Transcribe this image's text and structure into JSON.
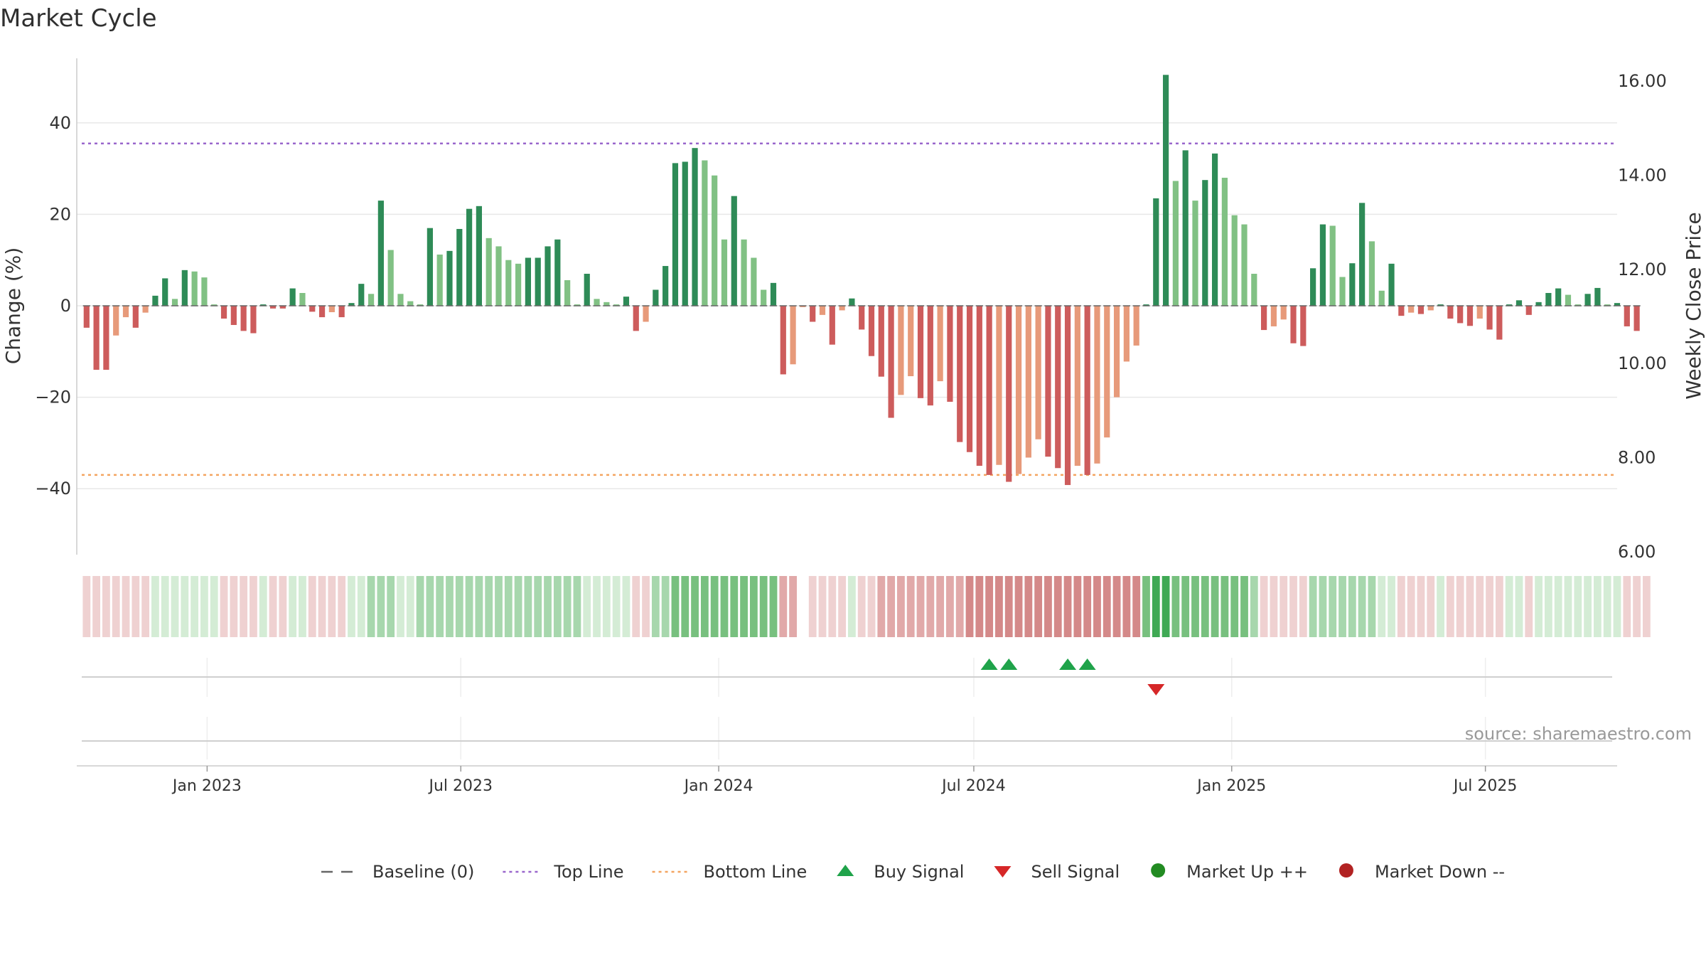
{
  "title": "Market Cycle",
  "source": "source: sharemaestro.com",
  "chart_data": {
    "type": "bar",
    "ylabel": "Change (%)",
    "ylabel_right": "Weekly Close Price",
    "ylim": [
      -55,
      55
    ],
    "yticks": [
      -40,
      -20,
      0,
      20,
      40
    ],
    "ytick_labels": [
      "−40",
      "−20",
      "0",
      "20",
      "40"
    ],
    "ylim_right": [
      6.0,
      16.0
    ],
    "yticks_right": [
      6,
      8,
      10,
      12,
      14,
      16
    ],
    "ytick_right_labels": [
      "6.00",
      "8.00",
      "10.00",
      "12.00",
      "14.00",
      "16.00"
    ],
    "grid": true,
    "top_line": 35.5,
    "bottom_line": -37,
    "x_start": "2022-09-30",
    "x_end": "2025-10-03",
    "week_start": "2022-10-07",
    "xticks": [
      "2023-01-01",
      "2023-07-01",
      "2024-01-01",
      "2024-07-01",
      "2025-01-01",
      "2025-07-01"
    ],
    "xtick_labels": [
      "Jan 2023",
      "Jul 2023",
      "Jan 2024",
      "Jul 2024",
      "Jan 2025",
      "Jul 2025"
    ],
    "values": [
      -4.8,
      -14,
      -14,
      -6.5,
      -2.5,
      -4.8,
      -1.5,
      2.2,
      6,
      1.5,
      7.8,
      7.5,
      6.2,
      0.3,
      -2.8,
      -4.2,
      -5.5,
      -6,
      0.3,
      -0.6,
      -0.6,
      3.8,
      2.8,
      -1.3,
      -2.5,
      -1.4,
      -2.5,
      0.6,
      4.8,
      2.6,
      23,
      12.2,
      2.6,
      1,
      0.3,
      17,
      11.2,
      12,
      16.8,
      21.2,
      21.8,
      14.8,
      13,
      10,
      9.2,
      10.5,
      10.5,
      13,
      14.5,
      5.6,
      0.3,
      7,
      1.5,
      0.8,
      0.3,
      2,
      -5.5,
      -3.5,
      3.5,
      8.7,
      31.2,
      31.5,
      34.5,
      31.8,
      28.5,
      14.5,
      24,
      14.5,
      10.5,
      3.5,
      5,
      -15,
      -12.8,
      -0.3,
      -3.5,
      -2,
      -8.5,
      -1,
      1.6,
      -5.2,
      -11,
      -15.5,
      -24.5,
      -19.5,
      -15.4,
      -20.2,
      -21.8,
      -16.5,
      -21,
      -29.8,
      -32,
      -35,
      -37,
      -34.8,
      -38.5,
      -36.8,
      -33.2,
      -29.2,
      -33,
      -35.5,
      -39.2,
      -35,
      -37,
      -34.5,
      -28.8,
      -20,
      -12.2,
      -8.7,
      0.3,
      23.5,
      50.5,
      27.3,
      34,
      23,
      27.5,
      33.3,
      28,
      19.8,
      17.8,
      7,
      -5.3,
      -4.5,
      -3,
      -8.2,
      -8.8,
      8.2,
      17.8,
      17.5,
      6.3,
      9.3,
      22.5,
      14.1,
      3.3,
      9.2,
      -2.2,
      -1.5,
      -1.8,
      -1,
      0.3,
      -2.8,
      -3.8,
      -4.4,
      -2.8,
      -5.2,
      -7.4,
      0.3,
      1.2,
      -2,
      0.8,
      2.8,
      3.8,
      2.4,
      0.3,
      2.6,
      3.9,
      0.3,
      0.6,
      -4.5,
      -5.5
    ],
    "regime_levels": [
      1,
      1,
      1,
      1,
      1,
      1,
      1,
      1,
      1,
      1,
      1,
      1,
      1,
      1,
      1,
      1,
      1,
      1,
      1,
      1,
      1,
      1,
      1,
      1,
      1,
      1,
      1,
      1,
      1,
      2,
      2,
      2,
      1,
      1,
      2,
      2,
      2,
      2,
      2,
      2,
      2,
      2,
      2,
      2,
      2,
      2,
      2,
      2,
      2,
      2,
      2,
      1,
      1,
      1,
      1,
      1,
      1,
      1,
      2,
      2,
      3,
      3,
      3,
      3,
      3,
      3,
      3,
      3,
      3,
      3,
      3,
      2,
      2,
      0,
      1,
      1,
      1,
      1,
      1,
      1,
      1,
      2,
      2,
      2,
      2,
      2,
      2,
      2,
      2,
      2,
      3,
      3,
      3,
      3,
      3,
      3,
      3,
      3,
      3,
      3,
      3,
      3,
      3,
      3,
      3,
      3,
      3,
      3,
      3,
      4,
      4,
      3,
      3,
      3,
      3,
      3,
      3,
      3,
      3,
      2,
      1,
      1,
      1,
      1,
      1,
      2,
      2,
      2,
      2,
      2,
      2,
      2,
      1,
      1,
      1,
      1,
      1,
      1,
      1,
      1,
      1,
      1,
      1,
      1,
      1,
      1,
      1,
      1,
      1,
      1,
      1,
      1,
      1,
      1,
      1,
      1,
      1,
      1,
      1,
      1
    ],
    "buy_signals": [
      92,
      94,
      100,
      102
    ],
    "sell_signals": [
      109
    ],
    "colors": {
      "up_strong": "#2e8b57",
      "up_weak": "#81c184",
      "down_strong": "#cd5c5c",
      "down_weak": "#e79a7a",
      "top_line": "#9966cc",
      "bottom_line": "#f4a460",
      "buy": "#1fa34a",
      "sell": "#d62728",
      "market_up": "#228b22",
      "market_down": "#b22222",
      "baseline": "#666666"
    },
    "legend": [
      {
        "label": "Baseline (0)",
        "symbol": "dash"
      },
      {
        "label": "Top Line",
        "symbol": "dot-purple"
      },
      {
        "label": "Bottom Line",
        "symbol": "dot-orange"
      },
      {
        "label": "Buy Signal",
        "symbol": "triangle-up"
      },
      {
        "label": "Sell Signal",
        "symbol": "triangle-down"
      },
      {
        "label": "Market Up ++",
        "symbol": "circle-green"
      },
      {
        "label": "Market Down --",
        "symbol": "circle-red"
      }
    ]
  }
}
